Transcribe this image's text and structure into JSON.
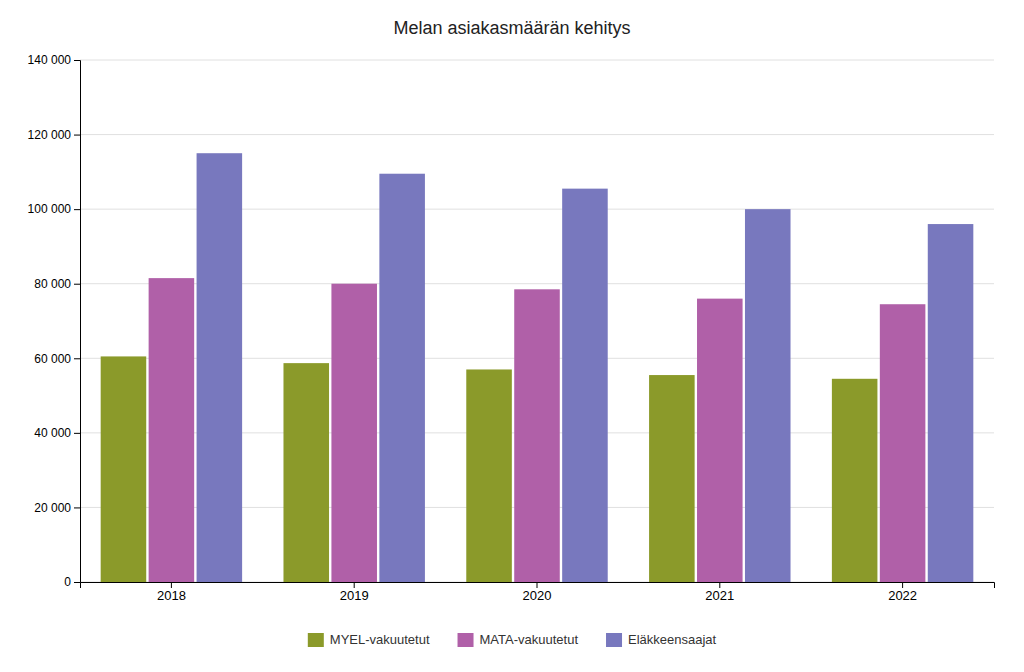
{
  "chart_data": {
    "type": "bar",
    "title": "Melan asiakasmäärän kehitys",
    "categories": [
      "2018",
      "2019",
      "2020",
      "2021",
      "2022"
    ],
    "series": [
      {
        "name": "MYEL-vakuutetut",
        "color": "#8B9A2A",
        "values": [
          60500,
          58700,
          57000,
          55500,
          54500
        ]
      },
      {
        "name": "MATA-vakuutetut",
        "color": "#B060A8",
        "values": [
          81500,
          80000,
          78500,
          76000,
          74500
        ]
      },
      {
        "name": "Eläkkeensaajat",
        "color": "#7878BE",
        "values": [
          115000,
          109500,
          105500,
          100000,
          96000
        ]
      }
    ],
    "ylim": [
      0,
      140000
    ],
    "yticks": [
      0,
      {
        "value": 20000,
        "label": "20 000"
      },
      {
        "value": 40000,
        "label": "40 000"
      },
      {
        "value": 60000,
        "label": "60 000"
      },
      {
        "value": 80000,
        "label": "80 000"
      },
      {
        "value": 100000,
        "label": "100 000"
      },
      {
        "value": 120000,
        "label": "120 000"
      },
      {
        "value": 140000,
        "label": "140 000"
      }
    ],
    "grid": true,
    "legend": "bottom"
  }
}
